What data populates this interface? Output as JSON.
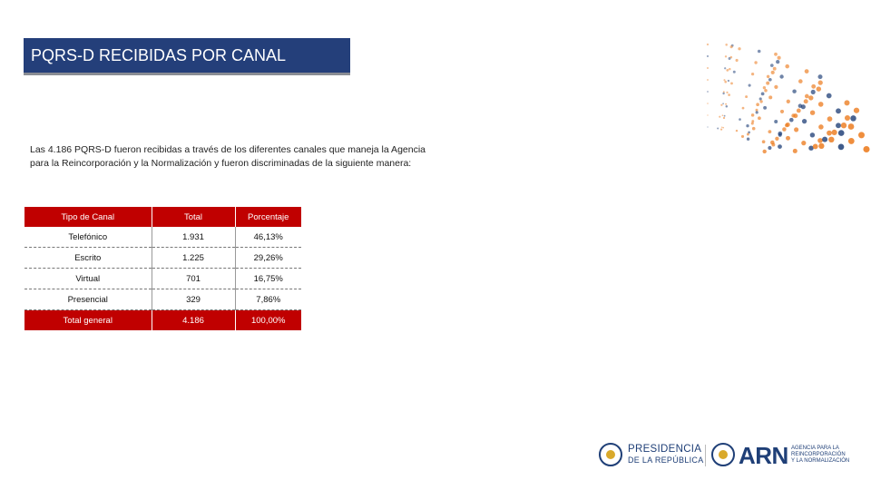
{
  "title": "PQRS-D RECIBIDAS POR CANAL",
  "intro": "Las 4.186 PQRS-D fueron recibidas a través de los diferentes canales que maneja la Agencia para la Reincorporación y la Normalización y fueron discriminadas de la siguiente manera:",
  "table": {
    "headers": [
      "Tipo de Canal",
      "Total",
      "Porcentaje"
    ],
    "rows": [
      {
        "canal": "Telefónico",
        "total": "1.931",
        "porcentaje": "46,13%"
      },
      {
        "canal": "Escrito",
        "total": "1.225",
        "porcentaje": "29,26%"
      },
      {
        "canal": "Virtual",
        "total": "701",
        "porcentaje": "16,75%"
      },
      {
        "canal": "Presencial",
        "total": "329",
        "porcentaje": "7,86%"
      }
    ],
    "footer": {
      "canal": "Total general",
      "total": "4.186",
      "porcentaje": "100,00%"
    }
  },
  "logos": {
    "presidencia_line1": "PRESIDENCIA",
    "presidencia_line2": "DE LA REPÚBLICA",
    "arn": "ARN",
    "arn_sub1": "AGENCIA PARA LA",
    "arn_sub2": "REINCORPORACIÓN",
    "arn_sub3": "Y LA NORMALIZACIÓN"
  },
  "colors": {
    "banner": "#243f7a",
    "table_accent": "#c00000",
    "dots_orange": "#ec7a1c",
    "dots_blue": "#1f3f77"
  }
}
